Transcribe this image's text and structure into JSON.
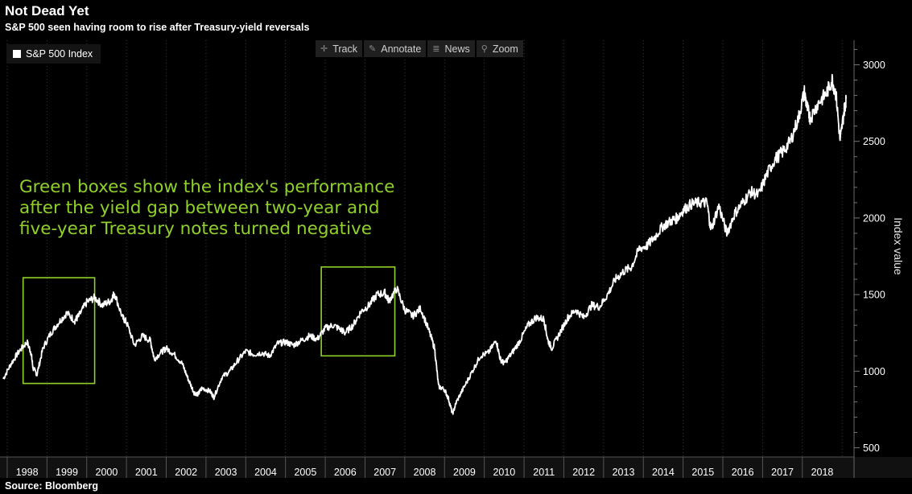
{
  "title": "Not Dead Yet",
  "subtitle": "S&P 500 seen having room to rise after Treasury-yield reversals",
  "source": "Source: Bloomberg",
  "toolbar": [
    {
      "label": "Track",
      "icon": "crosshair-icon"
    },
    {
      "label": "Annotate",
      "icon": "pencil-icon"
    },
    {
      "label": "News",
      "icon": "news-icon"
    },
    {
      "label": "Zoom",
      "icon": "magnifier-icon"
    }
  ],
  "annotation": {
    "lines": [
      "Green boxes show the index's performance",
      "after the yield gap between two-year and",
      "five-year Treasury notes turned negative"
    ],
    "color": "#8fd12a"
  },
  "chart_data": {
    "type": "line",
    "ylabel": "Index value",
    "ylim": [
      440,
      3160
    ],
    "yticks": [
      500,
      1000,
      1500,
      2000,
      2500,
      3000
    ],
    "xlim": [
      1997.9,
      2019.3
    ],
    "xticks": [
      "1998",
      "1999",
      "2000",
      "2001",
      "2002",
      "2003",
      "2004",
      "2005",
      "2006",
      "2007",
      "2008",
      "2009",
      "2010",
      "2011",
      "2012",
      "2013",
      "2014",
      "2015",
      "2016",
      "2017",
      "2018"
    ],
    "line_color": "#ffffff",
    "box_color": "#8fd12a",
    "legend": "top-left",
    "grid": "vertical dotted",
    "series": [
      {
        "name": "S&P 500 Index",
        "x": [
          1997.9,
          1998.1,
          1998.3,
          1998.5,
          1998.6,
          1998.65,
          1998.75,
          1998.9,
          1999.1,
          1999.3,
          1999.5,
          1999.7,
          1999.8,
          2000.0,
          2000.2,
          2000.4,
          2000.6,
          2000.7,
          2000.9,
          2001.0,
          2001.2,
          2001.4,
          2001.6,
          2001.7,
          2001.9,
          2002.0,
          2002.2,
          2002.4,
          2002.55,
          2002.7,
          2002.8,
          2002.9,
          2003.1,
          2003.2,
          2003.4,
          2003.6,
          2003.8,
          2004.0,
          2004.2,
          2004.4,
          2004.6,
          2004.8,
          2005.0,
          2005.2,
          2005.4,
          2005.6,
          2005.8,
          2006.0,
          2006.2,
          2006.4,
          2006.5,
          2006.7,
          2006.9,
          2007.1,
          2007.3,
          2007.5,
          2007.6,
          2007.8,
          2008.0,
          2008.2,
          2008.4,
          2008.6,
          2008.75,
          2008.85,
          2009.0,
          2009.1,
          2009.2,
          2009.3,
          2009.5,
          2009.7,
          2009.9,
          2010.1,
          2010.3,
          2010.4,
          2010.5,
          2010.7,
          2010.9,
          2011.1,
          2011.3,
          2011.5,
          2011.6,
          2011.7,
          2011.9,
          2012.1,
          2012.3,
          2012.5,
          2012.7,
          2012.9,
          2013.1,
          2013.3,
          2013.5,
          2013.7,
          2013.9,
          2014.1,
          2014.3,
          2014.5,
          2014.7,
          2014.85,
          2015.0,
          2015.2,
          2015.4,
          2015.6,
          2015.7,
          2015.9,
          2016.1,
          2016.3,
          2016.5,
          2016.7,
          2016.9,
          2017.1,
          2017.3,
          2017.5,
          2017.7,
          2017.9,
          2018.05,
          2018.12,
          2018.2,
          2018.4,
          2018.6,
          2018.75,
          2018.85,
          2018.95,
          2019.05,
          2019.1
        ],
        "y": [
          950,
          1050,
          1130,
          1190,
          1120,
          1020,
          980,
          1150,
          1250,
          1320,
          1380,
          1330,
          1360,
          1450,
          1480,
          1430,
          1460,
          1510,
          1350,
          1320,
          1170,
          1230,
          1200,
          1080,
          1130,
          1150,
          1110,
          1050,
          950,
          860,
          850,
          890,
          870,
          830,
          960,
          1000,
          1070,
          1130,
          1110,
          1120,
          1100,
          1180,
          1190,
          1170,
          1200,
          1230,
          1210,
          1280,
          1300,
          1270,
          1250,
          1300,
          1390,
          1430,
          1500,
          1510,
          1460,
          1540,
          1400,
          1360,
          1410,
          1270,
          1150,
          900,
          880,
          820,
          720,
          800,
          900,
          1000,
          1100,
          1120,
          1200,
          1080,
          1050,
          1120,
          1200,
          1300,
          1350,
          1340,
          1200,
          1150,
          1250,
          1350,
          1400,
          1350,
          1430,
          1420,
          1500,
          1600,
          1650,
          1680,
          1800,
          1820,
          1880,
          1950,
          1980,
          2000,
          2050,
          2090,
          2100,
          2100,
          1920,
          2080,
          1900,
          2030,
          2100,
          2170,
          2150,
          2280,
          2380,
          2430,
          2500,
          2650,
          2820,
          2720,
          2650,
          2750,
          2810,
          2900,
          2800,
          2500,
          2700,
          2780
        ]
      }
    ],
    "boxes": [
      {
        "x0": 1998.4,
        "x1": 2000.2,
        "y0": 920,
        "y1": 1610
      },
      {
        "x0": 2005.9,
        "x1": 2007.75,
        "y0": 1100,
        "y1": 1680
      }
    ]
  }
}
